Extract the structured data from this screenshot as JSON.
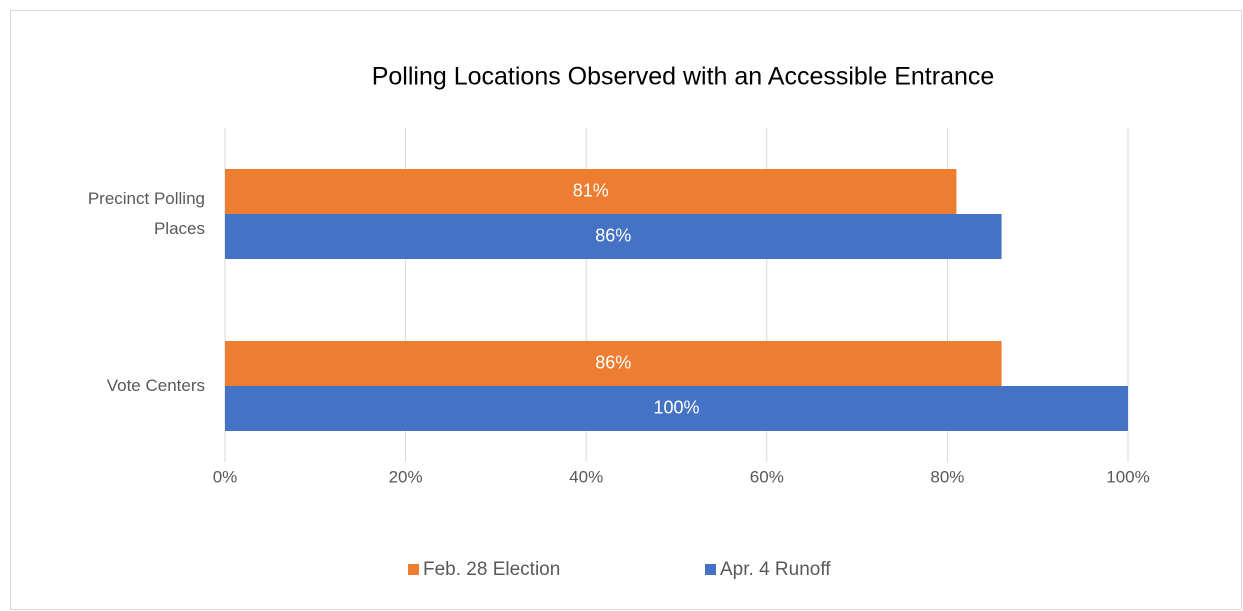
{
  "chart_data": {
    "type": "barh",
    "title": "Polling Locations Observed with an Accessible Entrance",
    "categories": [
      "Precinct Polling Places",
      "Vote Centers"
    ],
    "series": [
      {
        "name": "Feb. 28 Election",
        "color": "#ed7d31",
        "values": [
          81,
          86
        ],
        "value_labels": [
          "81%",
          "86%"
        ]
      },
      {
        "name": "Apr. 4 Runoff",
        "color": "#4472c4",
        "values": [
          86,
          100
        ],
        "value_labels": [
          "86%",
          "100%"
        ]
      }
    ],
    "xlim": [
      0,
      100
    ],
    "xticks": [
      {
        "value": 0,
        "label": "0%"
      },
      {
        "value": 20,
        "label": "20%"
      },
      {
        "value": 40,
        "label": "40%"
      },
      {
        "value": 60,
        "label": "60%"
      },
      {
        "value": 80,
        "label": "80%"
      },
      {
        "value": 100,
        "label": "100%"
      }
    ],
    "grid": true,
    "legend": "bottom"
  }
}
